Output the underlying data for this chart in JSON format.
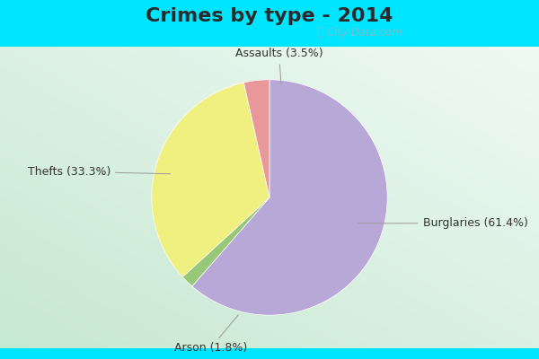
{
  "title": "Crimes by type - 2014",
  "slices": [
    {
      "label": "Burglaries",
      "pct": 61.4,
      "color": "#b8a8d8"
    },
    {
      "label": "Arson",
      "pct": 1.8,
      "color": "#96c878"
    },
    {
      "label": "Thefts",
      "pct": 33.3,
      "color": "#f0f080"
    },
    {
      "label": "Assaults",
      "pct": 3.5,
      "color": "#e89898"
    }
  ],
  "background_fig": "#00e5ff",
  "background_inner": "#d0ede0",
  "title_fontsize": 16,
  "label_fontsize": 9,
  "startangle": 90,
  "watermark": "ⓘ City-Data.com",
  "title_color": "#2a2a2a"
}
